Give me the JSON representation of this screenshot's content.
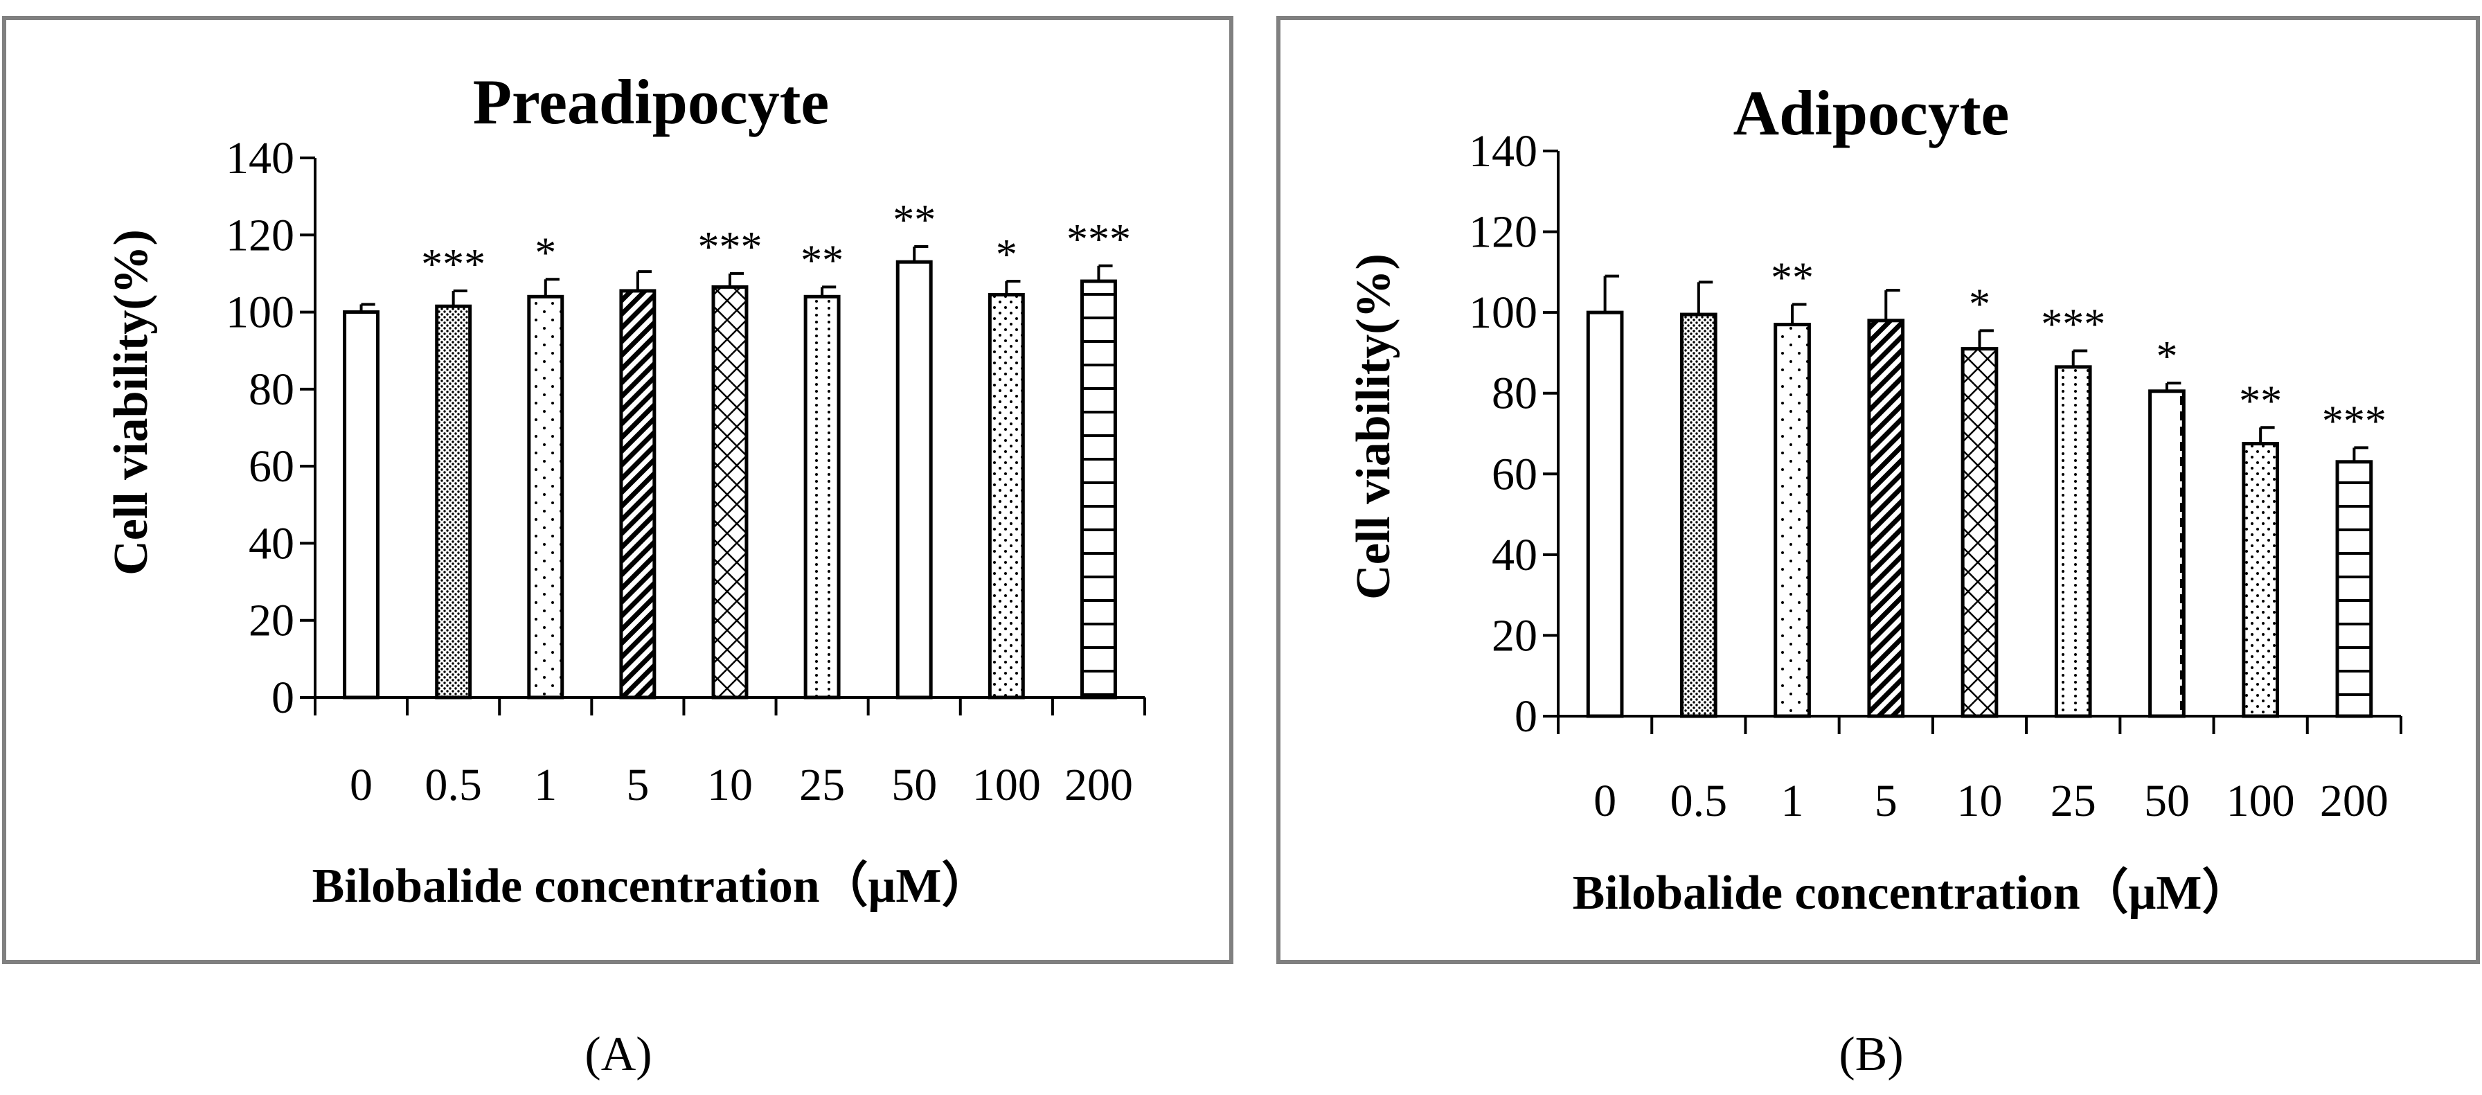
{
  "colors": {
    "frame": "#808080",
    "ink": "#000000",
    "background": "#ffffff"
  },
  "chart_data": [
    {
      "panel_label": "(A)",
      "type": "bar",
      "title": "Preadipocyte",
      "xlabel": "Bilobalide concentration（μM）",
      "ylabel": "Cell viability(%)",
      "ylim": [
        0,
        140
      ],
      "yticks": [
        "0",
        "20",
        "40",
        "60",
        "80",
        "100",
        "120",
        "140"
      ],
      "categories": [
        "0",
        "0.5",
        "1",
        "5",
        "10",
        "25",
        "50",
        "100",
        "200"
      ],
      "values": [
        100,
        101.5,
        104,
        105.5,
        106.5,
        104,
        113,
        104.5,
        108
      ],
      "errors": [
        2,
        4,
        4.5,
        5,
        3.5,
        2.5,
        4,
        3.5,
        4
      ],
      "significance": [
        "",
        "***",
        "*",
        "",
        "***",
        "**",
        "**",
        "*",
        "***"
      ],
      "patterns": [
        "none",
        "fine-dots",
        "sparse-dots",
        "diagonal-stripes",
        "crosshatch",
        "dotted-vlines",
        "dashed-vline",
        "scattered-dots",
        "horizontal-lines"
      ],
      "grid": false
    },
    {
      "panel_label": "(B)",
      "type": "bar",
      "title": "Adipocyte",
      "xlabel": "Bilobalide concentration（μM）",
      "ylabel": "Cell viability(%)",
      "ylim": [
        0,
        140
      ],
      "yticks": [
        "0",
        "20",
        "40",
        "60",
        "80",
        "100",
        "120",
        "140"
      ],
      "categories": [
        "0",
        "0.5",
        "1",
        "5",
        "10",
        "25",
        "50",
        "100",
        "200"
      ],
      "values": [
        100,
        99.5,
        97,
        98,
        91,
        86.5,
        80.5,
        67.5,
        63
      ],
      "errors": [
        9,
        8,
        5,
        7.5,
        4.5,
        4,
        2,
        4,
        3.5
      ],
      "significance": [
        "",
        "",
        "**",
        "",
        "*",
        "***",
        "*",
        "**",
        "***"
      ],
      "patterns": [
        "none",
        "fine-dots",
        "sparse-dots",
        "diagonal-stripes",
        "crosshatch",
        "dotted-vlines",
        "dashed-vline",
        "scattered-dots",
        "horizontal-lines"
      ],
      "grid": false
    }
  ]
}
